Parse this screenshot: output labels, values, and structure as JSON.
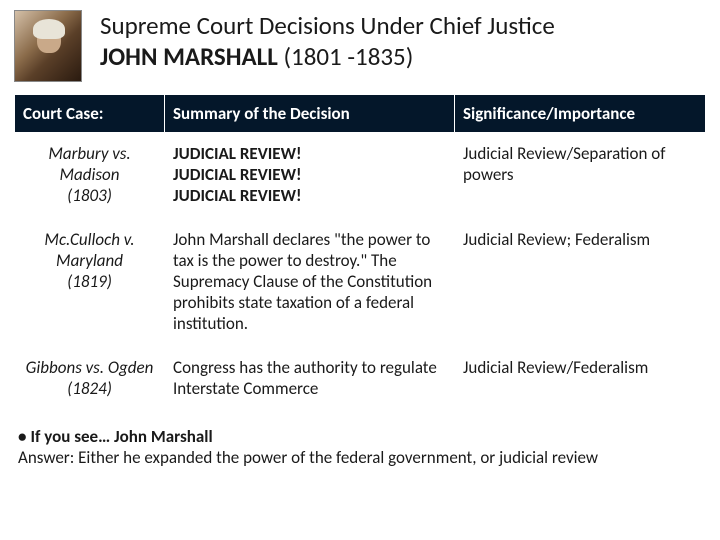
{
  "header": {
    "line1": "Supreme Court Decisions Under Chief Justice",
    "line2_bold": "JOHN MARSHALL",
    "line2_tail": " (1801 -1835)"
  },
  "table": {
    "header_bg": "#04172a",
    "header_fg": "#ffffff",
    "columns": [
      "Court Case:",
      "Summary of the Decision",
      "Significance/Importance"
    ],
    "rows": [
      {
        "case_name": "Marbury vs. Madison",
        "case_year": "(1803)",
        "summary": "JUDICIAL REVIEW!\nJUDICIAL REVIEW!\nJUDICIAL REVIEW!",
        "significance": "Judicial Review/Separation of powers"
      },
      {
        "case_name": "Mc.Culloch v. Maryland",
        "case_year": "(1819)",
        "summary": "John Marshall declares \"the power to tax is the power to destroy.\" The Supremacy Clause of the Constitution prohibits state taxation of a federal institution.",
        "significance": "Judicial Review; Federalism"
      },
      {
        "case_name": "Gibbons vs. Ogden",
        "case_year": "(1824)",
        "summary": "Congress has the authority to regulate Interstate Commerce",
        "significance": "Judicial Review/Federalism"
      }
    ]
  },
  "footer": {
    "line1_bold": "If you see… John Marshall",
    "line2": "Answer: Either he expanded the power of the federal government, or judicial review"
  }
}
